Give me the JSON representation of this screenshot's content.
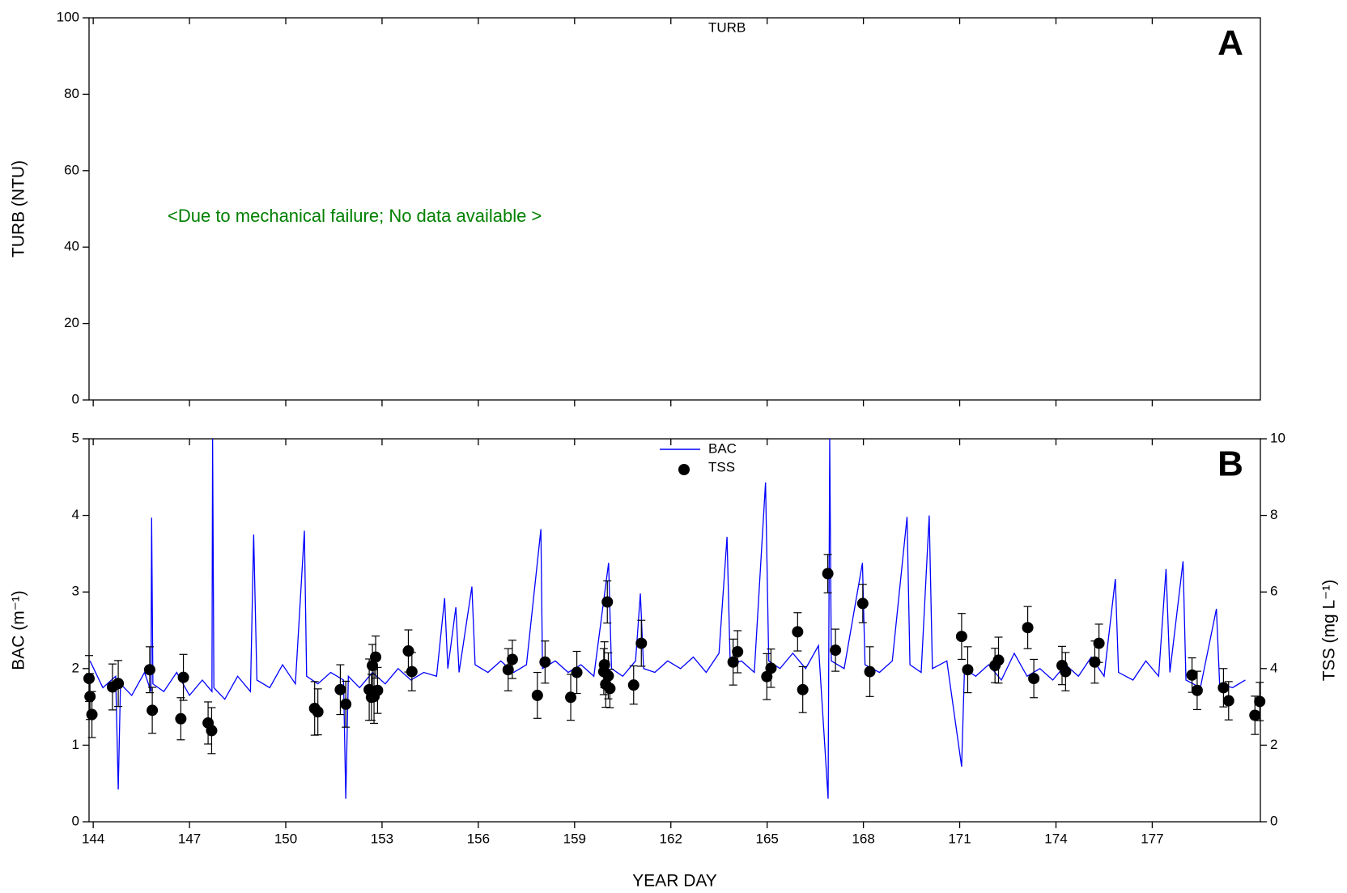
{
  "chart_data": [
    {
      "type": "line",
      "ylabel": "TURB (NTU)",
      "panel_label": "A",
      "annotation": "<Due to mechanical failure; No data available >",
      "annotation_color": "#008000",
      "xlim": [
        143.87,
        180.37
      ],
      "xticks": [
        144,
        147,
        150,
        153,
        156,
        159,
        162,
        165,
        168,
        171,
        174,
        177
      ],
      "ylim": [
        0,
        100
      ],
      "yticks": [
        0,
        20,
        40,
        60,
        80,
        100
      ],
      "series": [
        {
          "name": "TURB",
          "color": "#0000ff",
          "x": [],
          "values": []
        }
      ]
    },
    {
      "type": "line",
      "xlabel": "YEAR DAY",
      "ylabel": "BAC (m⁻¹)",
      "y2label": "TSS (mg L⁻¹)",
      "panel_label": "B",
      "xlim": [
        143.87,
        180.37
      ],
      "xticks": [
        144,
        147,
        150,
        153,
        156,
        159,
        162,
        165,
        168,
        171,
        174,
        177
      ],
      "ylim": [
        0,
        5
      ],
      "yticks": [
        0,
        1,
        2,
        3,
        4,
        5
      ],
      "y2lim": [
        0,
        10
      ],
      "y2ticks": [
        0,
        2,
        4,
        6,
        8,
        10
      ],
      "series": [
        {
          "name": "BAC",
          "color": "#0000ff",
          "x": [
            143.9,
            144.3,
            144.7,
            144.78,
            144.85,
            145.2,
            145.6,
            145.8,
            145.82,
            145.86,
            146.2,
            146.6,
            147.0,
            147.4,
            147.7,
            147.72,
            147.76,
            148.1,
            148.5,
            148.9,
            149.0,
            149.1,
            149.5,
            149.9,
            150.3,
            150.58,
            150.65,
            151.0,
            151.4,
            151.8,
            151.87,
            151.95,
            152.3,
            152.7,
            153.1,
            153.5,
            153.9,
            154.3,
            154.7,
            154.95,
            155.05,
            155.3,
            155.4,
            155.8,
            155.9,
            156.3,
            156.7,
            157.1,
            157.5,
            157.95,
            158.0,
            158.4,
            158.8,
            159.2,
            159.6,
            160.06,
            160.15,
            160.5,
            160.9,
            161.05,
            161.15,
            161.5,
            161.9,
            162.3,
            162.7,
            163.1,
            163.5,
            163.75,
            163.85,
            164.2,
            164.6,
            164.95,
            165.05,
            165.4,
            165.8,
            166.2,
            166.6,
            166.9,
            166.95,
            167.0,
            167.4,
            167.97,
            168.05,
            168.5,
            168.9,
            169.36,
            169.45,
            169.8,
            170.05,
            170.15,
            170.6,
            171.06,
            171.15,
            171.5,
            171.9,
            172.3,
            172.7,
            173.1,
            173.5,
            173.9,
            174.3,
            174.7,
            175.1,
            175.5,
            175.85,
            175.95,
            176.4,
            176.8,
            177.2,
            177.43,
            177.55,
            177.96,
            178.05,
            178.5,
            179.0,
            179.1,
            179.5,
            179.9
          ],
          "values": [
            2.1,
            1.75,
            1.9,
            0.42,
            1.8,
            1.65,
            1.95,
            1.7,
            3.97,
            1.8,
            1.7,
            1.95,
            1.65,
            1.85,
            1.7,
            5,
            1.75,
            1.6,
            1.9,
            1.7,
            3.75,
            1.85,
            1.75,
            2.05,
            1.8,
            3.8,
            1.9,
            1.8,
            1.95,
            1.85,
            0.3,
            1.9,
            1.75,
            1.95,
            1.8,
            2.0,
            1.85,
            1.95,
            1.9,
            2.92,
            2.0,
            2.8,
            1.95,
            3.07,
            2.05,
            1.95,
            2.1,
            1.95,
            2.05,
            3.82,
            2.0,
            2.1,
            1.95,
            2.05,
            1.9,
            3.38,
            2.0,
            1.9,
            2.1,
            2.98,
            2.0,
            1.95,
            2.1,
            2.0,
            2.15,
            1.95,
            2.2,
            3.72,
            2.05,
            2.1,
            1.95,
            4.43,
            2.1,
            2.0,
            2.2,
            2.0,
            2.3,
            0.3,
            5,
            2.1,
            2.0,
            3.38,
            2.05,
            1.95,
            2.1,
            3.98,
            2.05,
            1.95,
            4.0,
            2.0,
            2.1,
            0.72,
            2.0,
            1.9,
            2.05,
            1.85,
            2.2,
            1.9,
            2.0,
            1.85,
            2.05,
            1.9,
            2.15,
            1.9,
            3.17,
            1.95,
            1.85,
            2.1,
            1.9,
            3.3,
            1.95,
            3.4,
            1.85,
            1.75,
            2.78,
            1.8,
            1.75,
            1.85
          ]
        },
        {
          "name": "TSS",
          "color": "#000000",
          "axis": "y2",
          "x": [
            143.87,
            143.9,
            143.96,
            144.6,
            144.78,
            145.76,
            145.84,
            146.73,
            146.81,
            147.58,
            147.69,
            150.9,
            151.0,
            151.7,
            151.87,
            152.6,
            152.67,
            152.7,
            152.75,
            152.8,
            152.86,
            153.82,
            153.93,
            156.93,
            157.06,
            157.84,
            158.08,
            158.88,
            159.07,
            159.91,
            159.93,
            159.97,
            160.02,
            160.05,
            160.1,
            160.84,
            161.08,
            163.94,
            164.08,
            164.99,
            165.12,
            165.95,
            166.11,
            166.89,
            167.13,
            167.98,
            168.2,
            171.06,
            171.25,
            172.1,
            172.21,
            173.12,
            173.31,
            174.19,
            174.3,
            175.21,
            175.34,
            178.24,
            178.4,
            179.22,
            179.38,
            180.2,
            180.35
          ],
          "values": [
            3.74,
            3.27,
            2.8,
            3.52,
            3.61,
            3.97,
            2.91,
            2.69,
            3.77,
            2.58,
            2.38,
            2.96,
            2.87,
            3.45,
            3.07,
            3.45,
            3.25,
            4.08,
            3.27,
            4.3,
            3.43,
            4.46,
            3.92,
            3.97,
            4.24,
            3.3,
            4.17,
            3.25,
            3.9,
            3.92,
            4.1,
            3.59,
            5.74,
            3.81,
            3.48,
            3.57,
            4.66,
            4.17,
            4.44,
            3.79,
            4.01,
            4.96,
            3.45,
            6.48,
            4.48,
            5.7,
            3.92,
            4.84,
            3.97,
            4.08,
            4.22,
            5.07,
            3.74,
            4.08,
            3.92,
            4.17,
            4.66,
            3.83,
            3.43,
            3.5,
            3.16,
            2.78,
            3.14
          ],
          "errors": [
            0.6,
            0.6,
            0.6,
            0.6,
            0.6,
            0.6,
            0.6,
            0.55,
            0.6,
            0.55,
            0.6,
            0.7,
            0.6,
            0.65,
            0.6,
            0.8,
            0.6,
            0.55,
            0.7,
            0.55,
            0.6,
            0.55,
            0.5,
            0.55,
            0.5,
            0.6,
            0.55,
            0.6,
            0.55,
            0.6,
            0.6,
            0.6,
            0.55,
            0.6,
            0.5,
            0.5,
            0.6,
            0.6,
            0.55,
            0.6,
            0.5,
            0.5,
            0.6,
            0.5,
            0.55,
            0.5,
            0.65,
            0.6,
            0.6,
            0.45,
            0.6,
            0.55,
            0.5,
            0.5,
            0.5,
            0.55,
            0.5,
            0.45,
            0.5,
            0.5,
            0.5,
            0.5,
            0.5
          ]
        }
      ]
    }
  ]
}
